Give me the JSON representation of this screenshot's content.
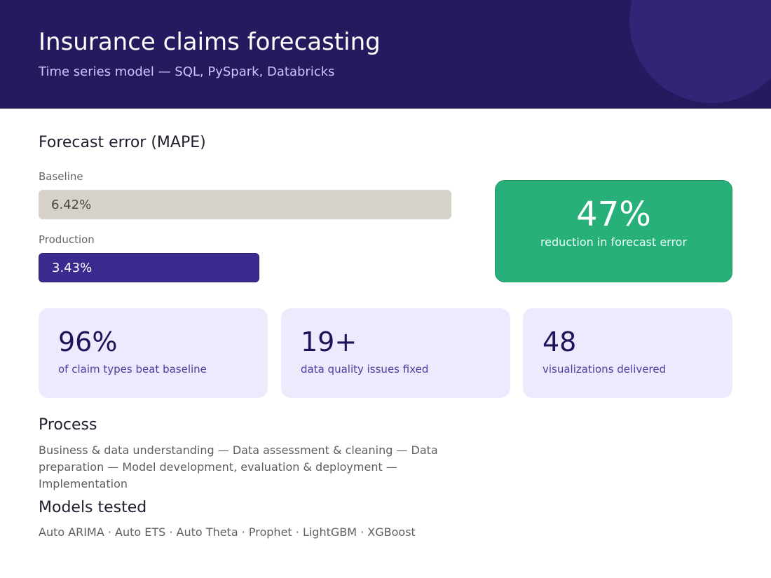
{
  "header": {
    "title": "Insurance claims forecasting",
    "subtitle": "Time series model — SQL, PySpark, Databricks"
  },
  "forecast_error": {
    "heading": "Forecast error (MAPE)",
    "bars": [
      {
        "label": "Baseline",
        "value_text": "6.42%",
        "value": 6.42
      },
      {
        "label": "Production",
        "value_text": "3.43%",
        "value": 3.43
      }
    ],
    "highlight": {
      "value": "47%",
      "label": "reduction in forecast error"
    }
  },
  "stats": [
    {
      "value": "96%",
      "label": "of claim types beat baseline"
    },
    {
      "value": "19+",
      "label": "data quality issues fixed"
    },
    {
      "value": "48",
      "label": "visualizations delivered"
    }
  ],
  "process": {
    "heading": "Process",
    "text": "Business & data understanding — Data assessment & cleaning — Data preparation — Model development, evaluation & deployment — Implementation"
  },
  "models": {
    "heading": "Models tested",
    "text": "Auto ARIMA · Auto ETS · Auto Theta · Prophet · LightGBM · XGBoost"
  },
  "colors": {
    "header_bg": "#251a5e",
    "baseline_bar": "#d6d2ca",
    "production_bar": "#3c2a8e",
    "highlight_card": "#28b07a",
    "stat_card": "#efe9fe"
  }
}
